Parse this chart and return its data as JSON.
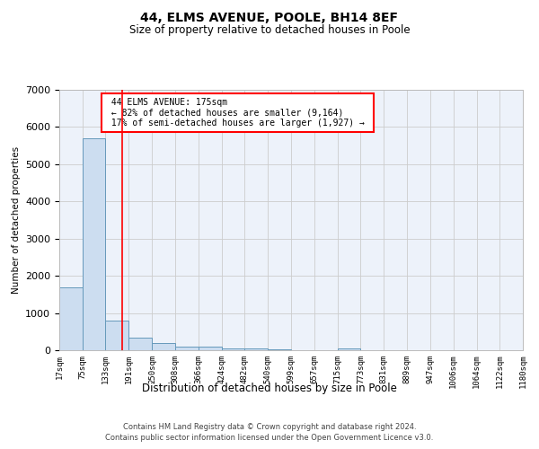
{
  "title": "44, ELMS AVENUE, POOLE, BH14 8EF",
  "subtitle": "Size of property relative to detached houses in Poole",
  "xlabel": "Distribution of detached houses by size in Poole",
  "ylabel": "Number of detached properties",
  "bar_edges": [
    17,
    75,
    133,
    191,
    250,
    308,
    366,
    424,
    482,
    540,
    599,
    657,
    715,
    773,
    831,
    889,
    947,
    1006,
    1064,
    1122,
    1180
  ],
  "bar_heights": [
    1700,
    5700,
    800,
    350,
    200,
    100,
    85,
    55,
    45,
    30,
    0,
    0,
    55,
    0,
    0,
    0,
    0,
    0,
    0,
    0
  ],
  "bar_color": "#ccddf0",
  "bar_edge_color": "#6699bb",
  "grid_color": "#cccccc",
  "bg_color": "#edf2fa",
  "red_line_x": 175,
  "annotation_text_line1": "44 ELMS AVENUE: 175sqm",
  "annotation_text_line2": "← 82% of detached houses are smaller (9,164)",
  "annotation_text_line3": "17% of semi-detached houses are larger (1,927) →",
  "footnote1": "Contains HM Land Registry data © Crown copyright and database right 2024.",
  "footnote2": "Contains public sector information licensed under the Open Government Licence v3.0.",
  "ylim": [
    0,
    7000
  ],
  "tick_labels": [
    "17sqm",
    "75sqm",
    "133sqm",
    "191sqm",
    "250sqm",
    "308sqm",
    "366sqm",
    "424sqm",
    "482sqm",
    "540sqm",
    "599sqm",
    "657sqm",
    "715sqm",
    "773sqm",
    "831sqm",
    "889sqm",
    "947sqm",
    "1006sqm",
    "1064sqm",
    "1122sqm",
    "1180sqm"
  ]
}
